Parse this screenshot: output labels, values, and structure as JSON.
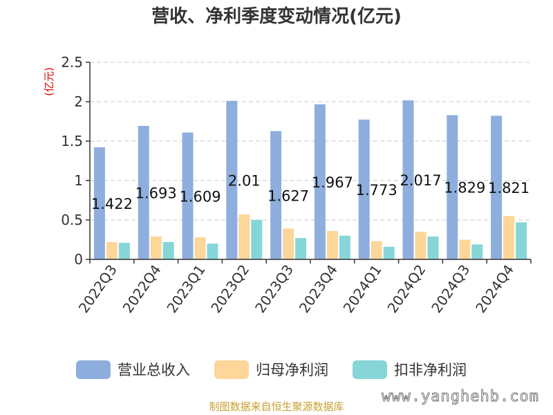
{
  "chart_data": {
    "type": "bar",
    "title": "营收、净利季度变动情况(亿元)",
    "ylabel": "(亿元)",
    "categories": [
      "2022Q3",
      "2022Q4",
      "2023Q1",
      "2023Q2",
      "2023Q3",
      "2023Q4",
      "2024Q1",
      "2024Q2",
      "2024Q3",
      "2024Q4"
    ],
    "series": [
      {
        "name": "营业总收入",
        "color": "#8eaedd",
        "values": [
          1.422,
          1.693,
          1.609,
          2.01,
          1.627,
          1.967,
          1.773,
          2.017,
          1.829,
          1.821
        ]
      },
      {
        "name": "归母净利润",
        "color": "#fdd699",
        "values": [
          0.22,
          0.29,
          0.28,
          0.57,
          0.39,
          0.36,
          0.23,
          0.35,
          0.25,
          0.55
        ]
      },
      {
        "name": "扣非净利润",
        "color": "#86d6d8",
        "values": [
          0.21,
          0.22,
          0.2,
          0.5,
          0.27,
          0.3,
          0.16,
          0.29,
          0.19,
          0.47
        ]
      }
    ],
    "data_labels": [
      "1.422",
      "1.693",
      "1.609",
      "2.01",
      "1.627",
      "1.967",
      "1.773",
      "2.017",
      "1.829",
      "1.821"
    ],
    "ylim": [
      0,
      2.5
    ],
    "yticks": [
      "0",
      "0.5",
      "1",
      "1.5",
      "2",
      "2.5"
    ],
    "grid": true,
    "legend_position": "bottom"
  },
  "footer": "制图数据来自恒生聚源数据库",
  "watermark": "www.yanghehb.com"
}
